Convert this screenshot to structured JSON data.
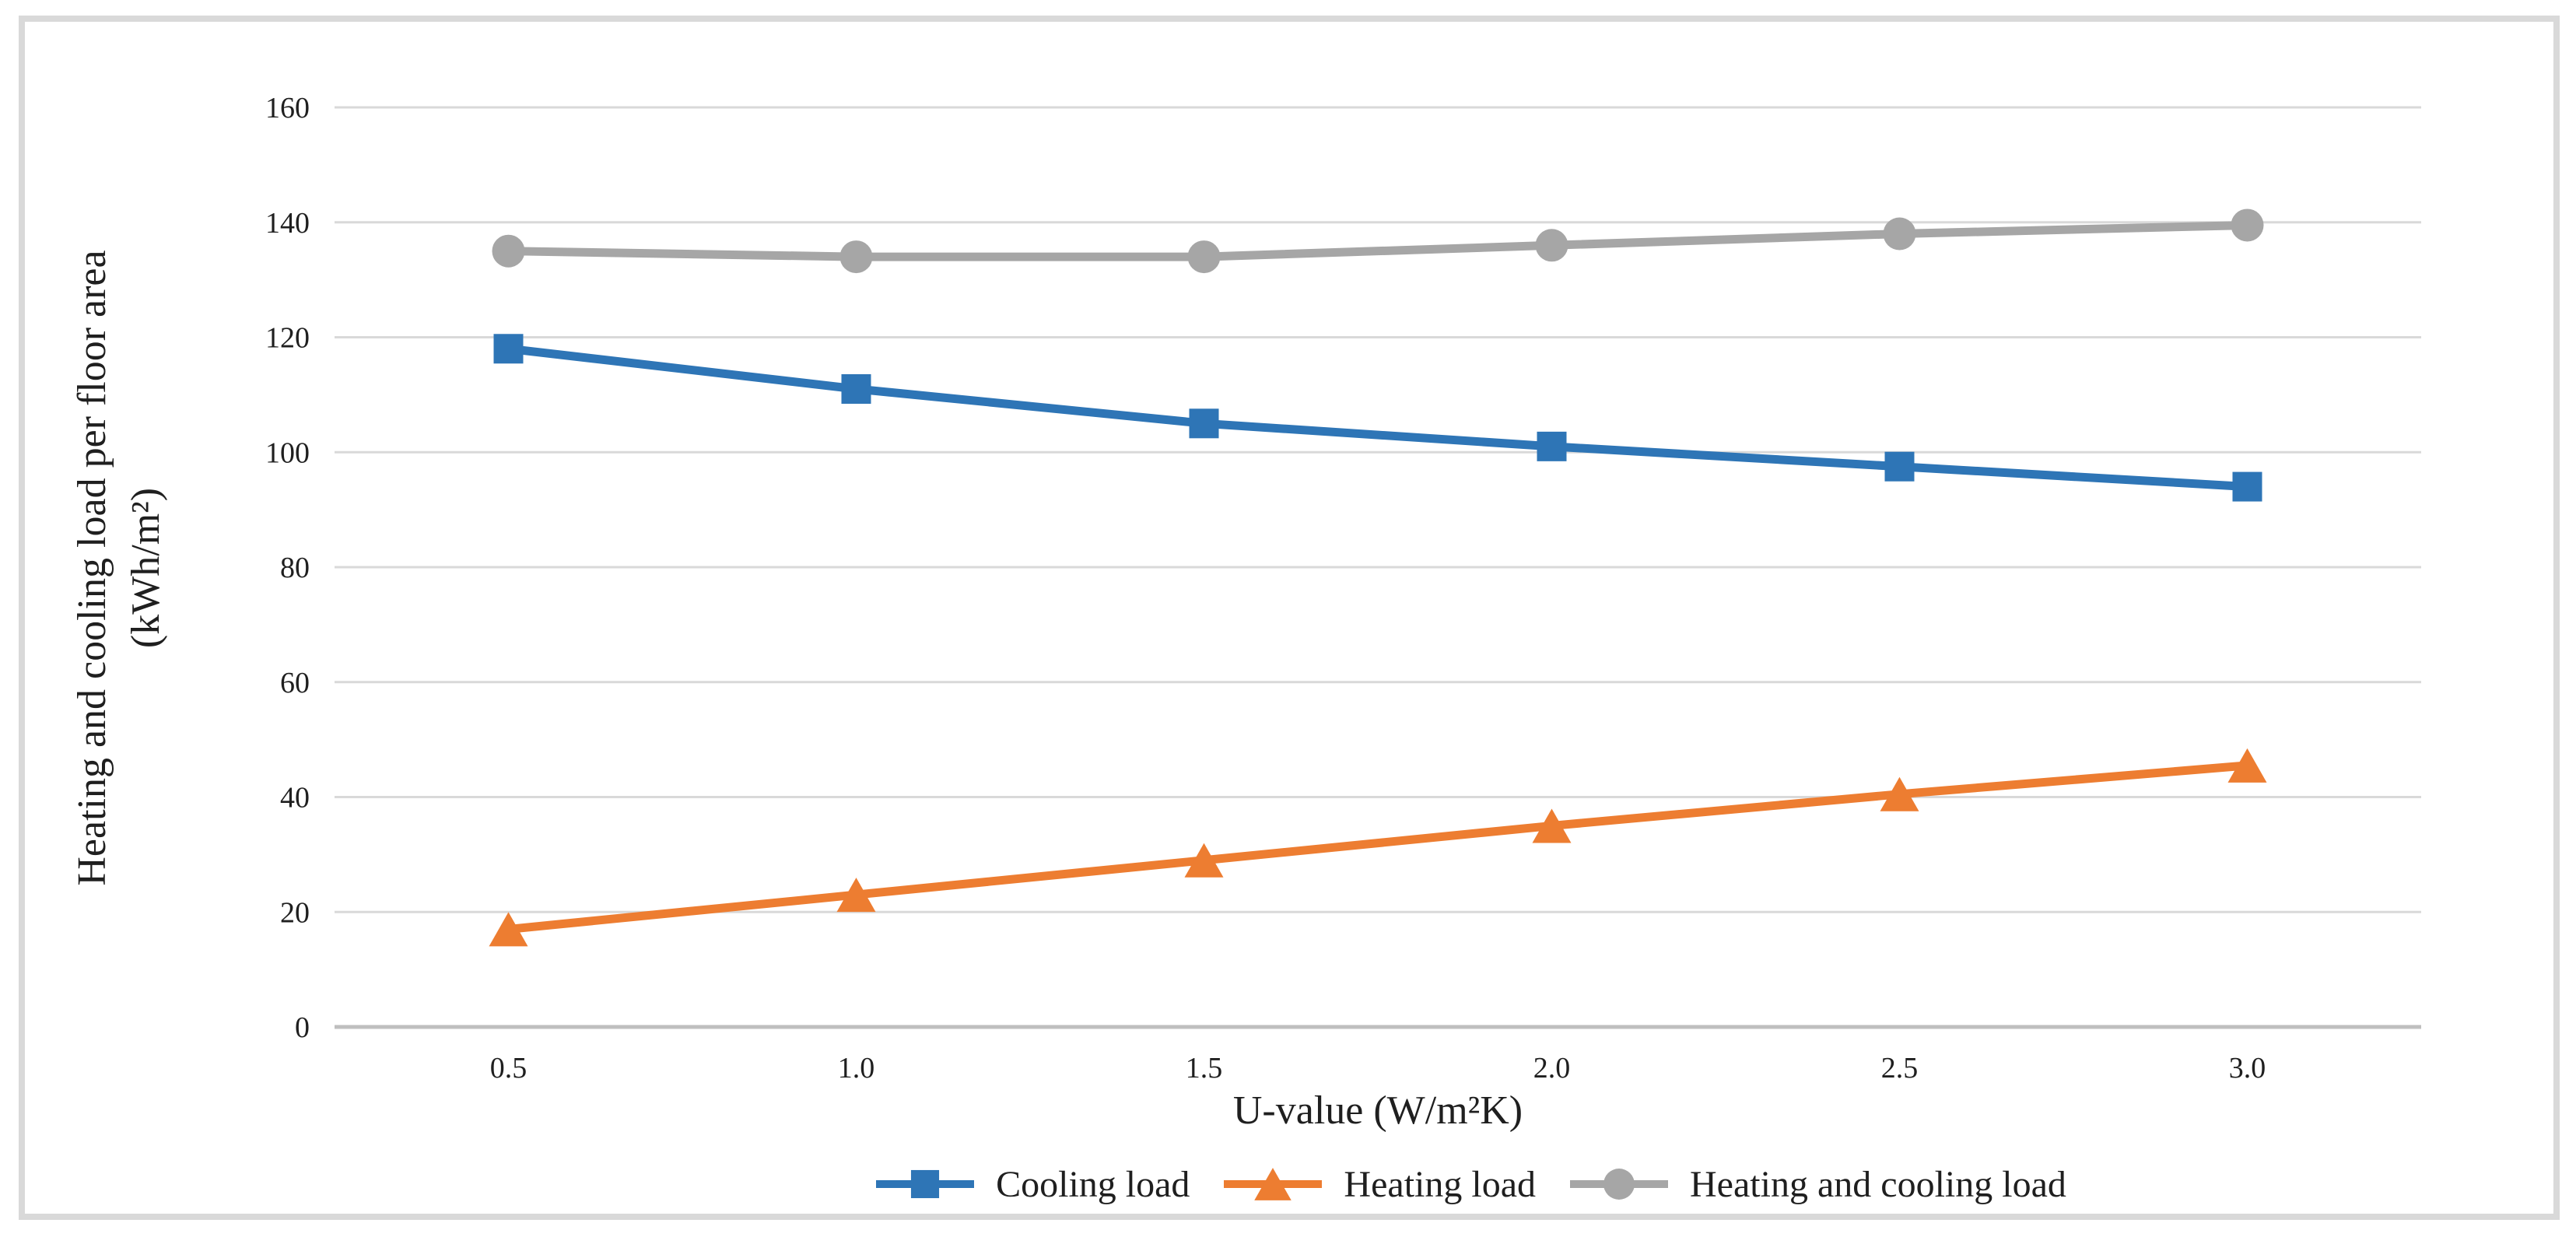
{
  "figure": {
    "background": "#ffffff",
    "border_color": "#d9d9d9"
  },
  "chart_data": {
    "type": "line",
    "title": "",
    "categories": [
      "0.5",
      "1.0",
      "1.5",
      "2.0",
      "2.5",
      "3.0"
    ],
    "x_values": [
      0.5,
      1.0,
      1.5,
      2.0,
      2.5,
      3.0
    ],
    "series": [
      {
        "name": "Cooling load",
        "values": [
          118,
          111,
          105,
          101,
          97.5,
          94
        ],
        "color": "#2e75b6",
        "marker": "square"
      },
      {
        "name": "Heating load",
        "values": [
          17,
          23,
          29,
          35,
          40.5,
          45.5
        ],
        "color": "#ed7d31",
        "marker": "triangle"
      },
      {
        "name": "Heating and cooling load",
        "values": [
          135,
          134,
          134,
          136,
          138,
          139.5
        ],
        "color": "#a6a6a6",
        "marker": "circle"
      }
    ],
    "xlabel": "U-value (W/m²K)",
    "ylabel_line1": "Heating and cooling load per floor area",
    "ylabel_line2": "(kWh/m²)",
    "ylim": [
      0,
      160
    ],
    "yticks": [
      0,
      20,
      40,
      60,
      80,
      100,
      120,
      140,
      160
    ],
    "grid": true,
    "legend_position": "bottom",
    "gridline_color": "#d9d9d9",
    "axisline_color": "#bfbfbf",
    "text_color": "#1f1f1f"
  }
}
